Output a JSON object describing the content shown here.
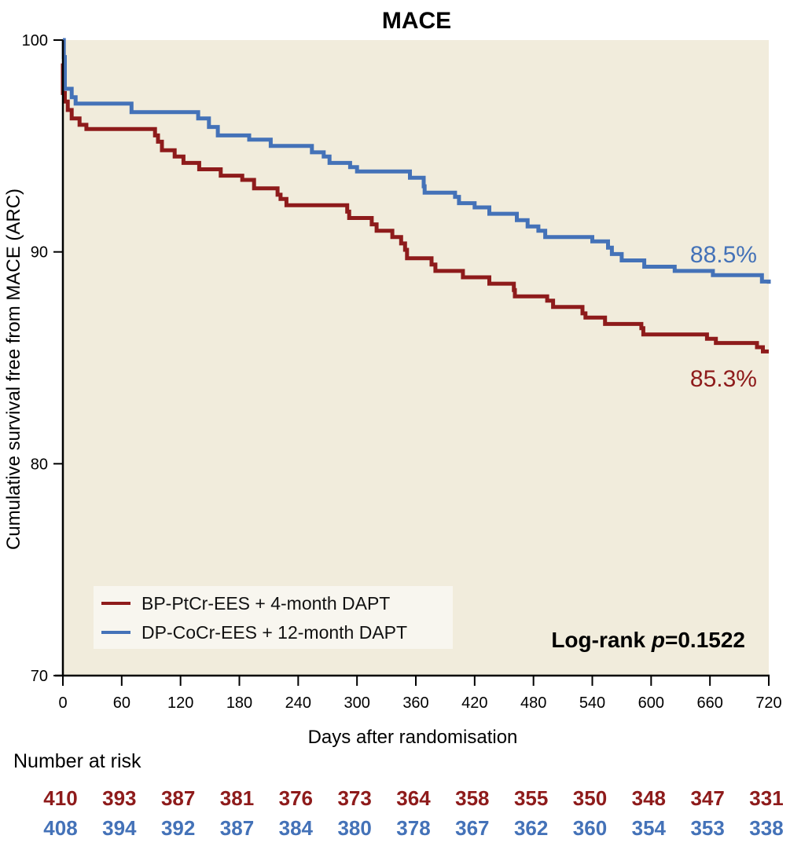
{
  "chart_data": {
    "type": "line",
    "subtype": "kaplan-meier step",
    "title": "MACE",
    "xlabel": "Days after randomisation",
    "ylabel": "Cumulative survival free from MACE (ARC)",
    "xlim": [
      0,
      720
    ],
    "ylim": [
      70,
      100
    ],
    "xticks": [
      0,
      60,
      120,
      180,
      240,
      300,
      360,
      420,
      480,
      540,
      600,
      660,
      720
    ],
    "yticks": [
      70,
      80,
      90,
      100
    ],
    "grid": false,
    "background": "#f1ecdc",
    "legend_position": "bottom-left",
    "annotation": {
      "prefix": "Log-rank ",
      "p_symbol": "p",
      "value": "=0.1522"
    },
    "series": [
      {
        "name": "BP-PtCr-EES + 4-month DAPT",
        "color": "#8e1b1b",
        "end_label": "85.3%",
        "points": [
          [
            0,
            98.9
          ],
          [
            0,
            97.5
          ],
          [
            2,
            97.1
          ],
          [
            5,
            96.7
          ],
          [
            9,
            96.3
          ],
          [
            17,
            96.0
          ],
          [
            24,
            95.8
          ],
          [
            94,
            95.5
          ],
          [
            97,
            95.2
          ],
          [
            101,
            94.8
          ],
          [
            114,
            94.5
          ],
          [
            123,
            94.2
          ],
          [
            139,
            93.9
          ],
          [
            161,
            93.6
          ],
          [
            183,
            93.4
          ],
          [
            195,
            93.0
          ],
          [
            219,
            92.7
          ],
          [
            222,
            92.5
          ],
          [
            228,
            92.2
          ],
          [
            290,
            91.9
          ],
          [
            292,
            91.6
          ],
          [
            315,
            91.3
          ],
          [
            320,
            91.0
          ],
          [
            336,
            90.7
          ],
          [
            345,
            90.4
          ],
          [
            349,
            90.1
          ],
          [
            351,
            89.7
          ],
          [
            376,
            89.4
          ],
          [
            380,
            89.1
          ],
          [
            408,
            88.8
          ],
          [
            435,
            88.5
          ],
          [
            460,
            88.2
          ],
          [
            461,
            87.9
          ],
          [
            494,
            87.7
          ],
          [
            500,
            87.4
          ],
          [
            530,
            87.1
          ],
          [
            533,
            86.9
          ],
          [
            553,
            86.6
          ],
          [
            590,
            86.4
          ],
          [
            592,
            86.1
          ],
          [
            657,
            85.9
          ],
          [
            666,
            85.7
          ],
          [
            708,
            85.5
          ],
          [
            714,
            85.3
          ],
          [
            720,
            85.3
          ]
        ]
      },
      {
        "name": "DP-CoCr-EES + 12-month DAPT",
        "color": "#4472b8",
        "end_label": "88.5%",
        "points": [
          [
            0,
            100
          ],
          [
            1,
            99.2
          ],
          [
            2,
            97.7
          ],
          [
            9,
            97.3
          ],
          [
            13,
            97.0
          ],
          [
            70,
            96.6
          ],
          [
            138,
            96.3
          ],
          [
            149,
            95.9
          ],
          [
            158,
            95.5
          ],
          [
            190,
            95.3
          ],
          [
            212,
            95.0
          ],
          [
            254,
            94.7
          ],
          [
            266,
            94.5
          ],
          [
            272,
            94.2
          ],
          [
            293,
            94.0
          ],
          [
            300,
            93.8
          ],
          [
            354,
            93.5
          ],
          [
            368,
            93.1
          ],
          [
            369,
            92.8
          ],
          [
            400,
            92.6
          ],
          [
            404,
            92.3
          ],
          [
            420,
            92.1
          ],
          [
            435,
            91.8
          ],
          [
            463,
            91.5
          ],
          [
            474,
            91.2
          ],
          [
            485,
            91.0
          ],
          [
            492,
            90.7
          ],
          [
            540,
            90.5
          ],
          [
            556,
            90.2
          ],
          [
            560,
            89.9
          ],
          [
            570,
            89.6
          ],
          [
            593,
            89.3
          ],
          [
            624,
            89.1
          ],
          [
            663,
            88.9
          ],
          [
            713,
            88.6
          ],
          [
            720,
            88.5
          ]
        ]
      }
    ],
    "risk_table": {
      "title": "Number at risk",
      "timepoints": [
        0,
        60,
        120,
        180,
        240,
        300,
        360,
        420,
        480,
        540,
        600,
        660,
        720
      ],
      "rows": [
        {
          "series": "BP-PtCr-EES + 4-month DAPT",
          "color": "#8e1b1b",
          "values": [
            410,
            393,
            387,
            381,
            376,
            373,
            364,
            358,
            355,
            350,
            348,
            347,
            331
          ]
        },
        {
          "series": "DP-CoCr-EES + 12-month DAPT",
          "color": "#4472b8",
          "values": [
            408,
            394,
            392,
            387,
            384,
            380,
            378,
            367,
            362,
            360,
            354,
            353,
            338
          ]
        }
      ]
    }
  }
}
